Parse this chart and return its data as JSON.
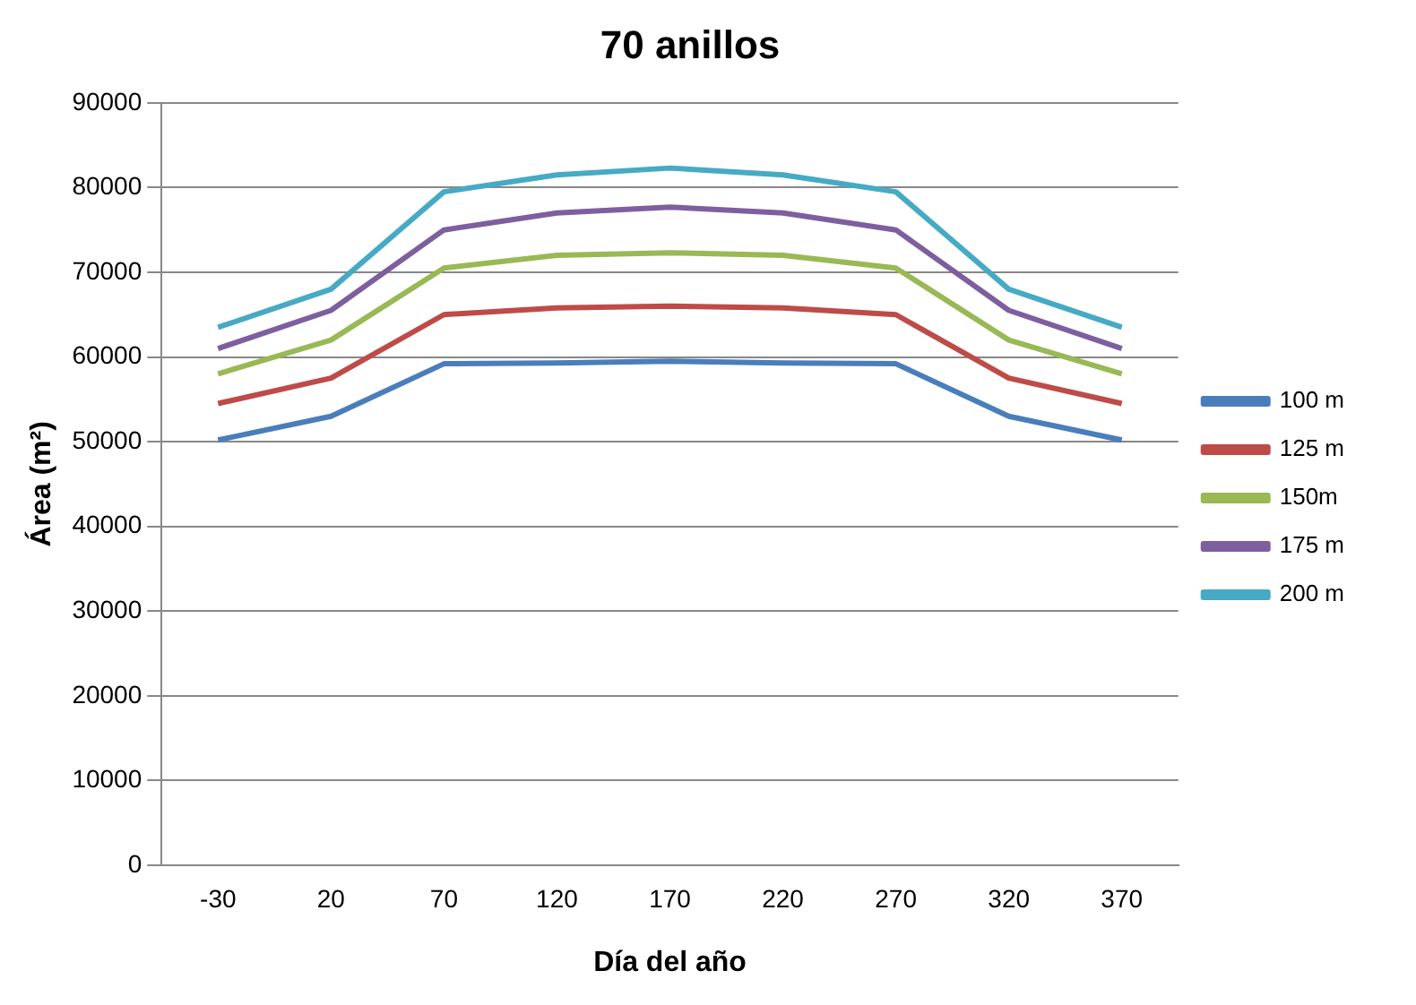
{
  "chart_data": {
    "type": "line",
    "title": "70 anillos",
    "xlabel": "Día del año",
    "ylabel": "Área (m²)",
    "categories": [
      "-30",
      "20",
      "70",
      "120",
      "170",
      "220",
      "270",
      "320",
      "370"
    ],
    "series": [
      {
        "name": "100 m",
        "color": "#4a7ebb",
        "values": [
          50200,
          53000,
          59200,
          59300,
          59500,
          59300,
          59200,
          53000,
          50200
        ]
      },
      {
        "name": "125 m",
        "color": "#be4b48",
        "values": [
          54500,
          57500,
          65000,
          65800,
          66000,
          65800,
          65000,
          57500,
          54500
        ]
      },
      {
        "name": "150m",
        "color": "#98b954",
        "values": [
          58000,
          62000,
          70500,
          72000,
          72300,
          72000,
          70500,
          62000,
          58000
        ]
      },
      {
        "name": "175 m",
        "color": "#7d5fa0",
        "values": [
          61000,
          65500,
          75000,
          77000,
          77700,
          77000,
          75000,
          65500,
          61000
        ]
      },
      {
        "name": "200 m",
        "color": "#46aac5",
        "values": [
          63500,
          68000,
          79500,
          81500,
          82300,
          81500,
          79500,
          68000,
          63500
        ]
      }
    ],
    "ylim": [
      0,
      90000
    ],
    "yticks": [
      0,
      10000,
      20000,
      30000,
      40000,
      50000,
      60000,
      70000,
      80000,
      90000
    ],
    "grid": "y",
    "legend": "right",
    "marker": "none",
    "line_style": "solid"
  }
}
